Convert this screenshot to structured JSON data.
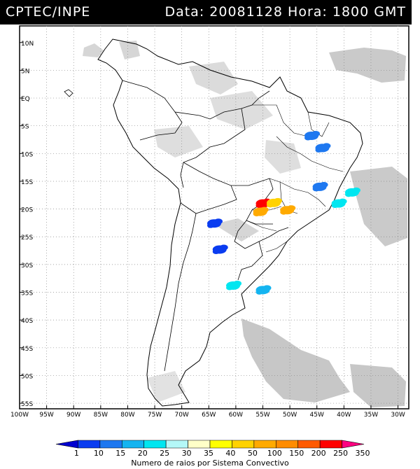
{
  "header": {
    "agency": "CPTEC/INPE",
    "data_label": "Data:",
    "date": "20081128",
    "hora_label": "Hora:",
    "time": "1800 GMT"
  },
  "map": {
    "lat_labels": [
      "10N",
      "5N",
      "EQ",
      "5S",
      "10S",
      "15S",
      "20S",
      "25S",
      "30S",
      "35S",
      "40S",
      "45S",
      "50S",
      "55S"
    ],
    "lat_values": [
      10,
      5,
      0,
      -5,
      -10,
      -15,
      -20,
      -25,
      -30,
      -35,
      -40,
      -45,
      -50,
      -55
    ],
    "lon_labels": [
      "100W",
      "95W",
      "90W",
      "85W",
      "80W",
      "75W",
      "70W",
      "65W",
      "60W",
      "55W",
      "50W",
      "45W",
      "40W",
      "35W",
      "30W"
    ],
    "lon_values": [
      -100,
      -95,
      -90,
      -85,
      -80,
      -75,
      -70,
      -65,
      -60,
      -55,
      -50,
      -45,
      -40,
      -35,
      -30
    ],
    "extent": {
      "lon_min": -100,
      "lon_max": -28,
      "lat_min": -56,
      "lat_max": 13
    },
    "background_color": "#ffffff",
    "cloud_color": "#bdbdbd",
    "border_color": "#000000",
    "grid_style": "dotted"
  },
  "colorbar": {
    "labels": [
      "1",
      "10",
      "15",
      "20",
      "25",
      "30",
      "35",
      "40",
      "50",
      "100",
      "150",
      "200",
      "250",
      "350"
    ],
    "colors": [
      "#0000d0",
      "#0a3cf0",
      "#1e78f0",
      "#14b4f0",
      "#00e6f0",
      "#b4f8f8",
      "#ffffc8",
      "#ffff00",
      "#ffd200",
      "#ffaa00",
      "#ff8c00",
      "#ff5a00",
      "#ff0000",
      "#ff0080"
    ],
    "title": "Numero de raios por Sistema Convectivo"
  },
  "storm_systems": [
    {
      "lon": -46.0,
      "lat": -6.8,
      "class": 2
    },
    {
      "lon": -44.0,
      "lat": -9.0,
      "class": 2
    },
    {
      "lon": -44.5,
      "lat": -16.0,
      "class": 2
    },
    {
      "lon": -38.5,
      "lat": -17.0,
      "class": 4
    },
    {
      "lon": -41.0,
      "lat": -19.0,
      "class": 4
    },
    {
      "lon": -55.0,
      "lat": -19.0,
      "class": 12
    },
    {
      "lon": -53.0,
      "lat": -18.9,
      "class": 8
    },
    {
      "lon": -55.5,
      "lat": -20.5,
      "class": 9
    },
    {
      "lon": -50.5,
      "lat": -20.2,
      "class": 9
    },
    {
      "lon": -64.0,
      "lat": -22.6,
      "class": 1
    },
    {
      "lon": -63.0,
      "lat": -27.3,
      "class": 1
    },
    {
      "lon": -60.5,
      "lat": -33.8,
      "class": 4
    },
    {
      "lon": -55.0,
      "lat": -34.6,
      "class": 3
    }
  ]
}
